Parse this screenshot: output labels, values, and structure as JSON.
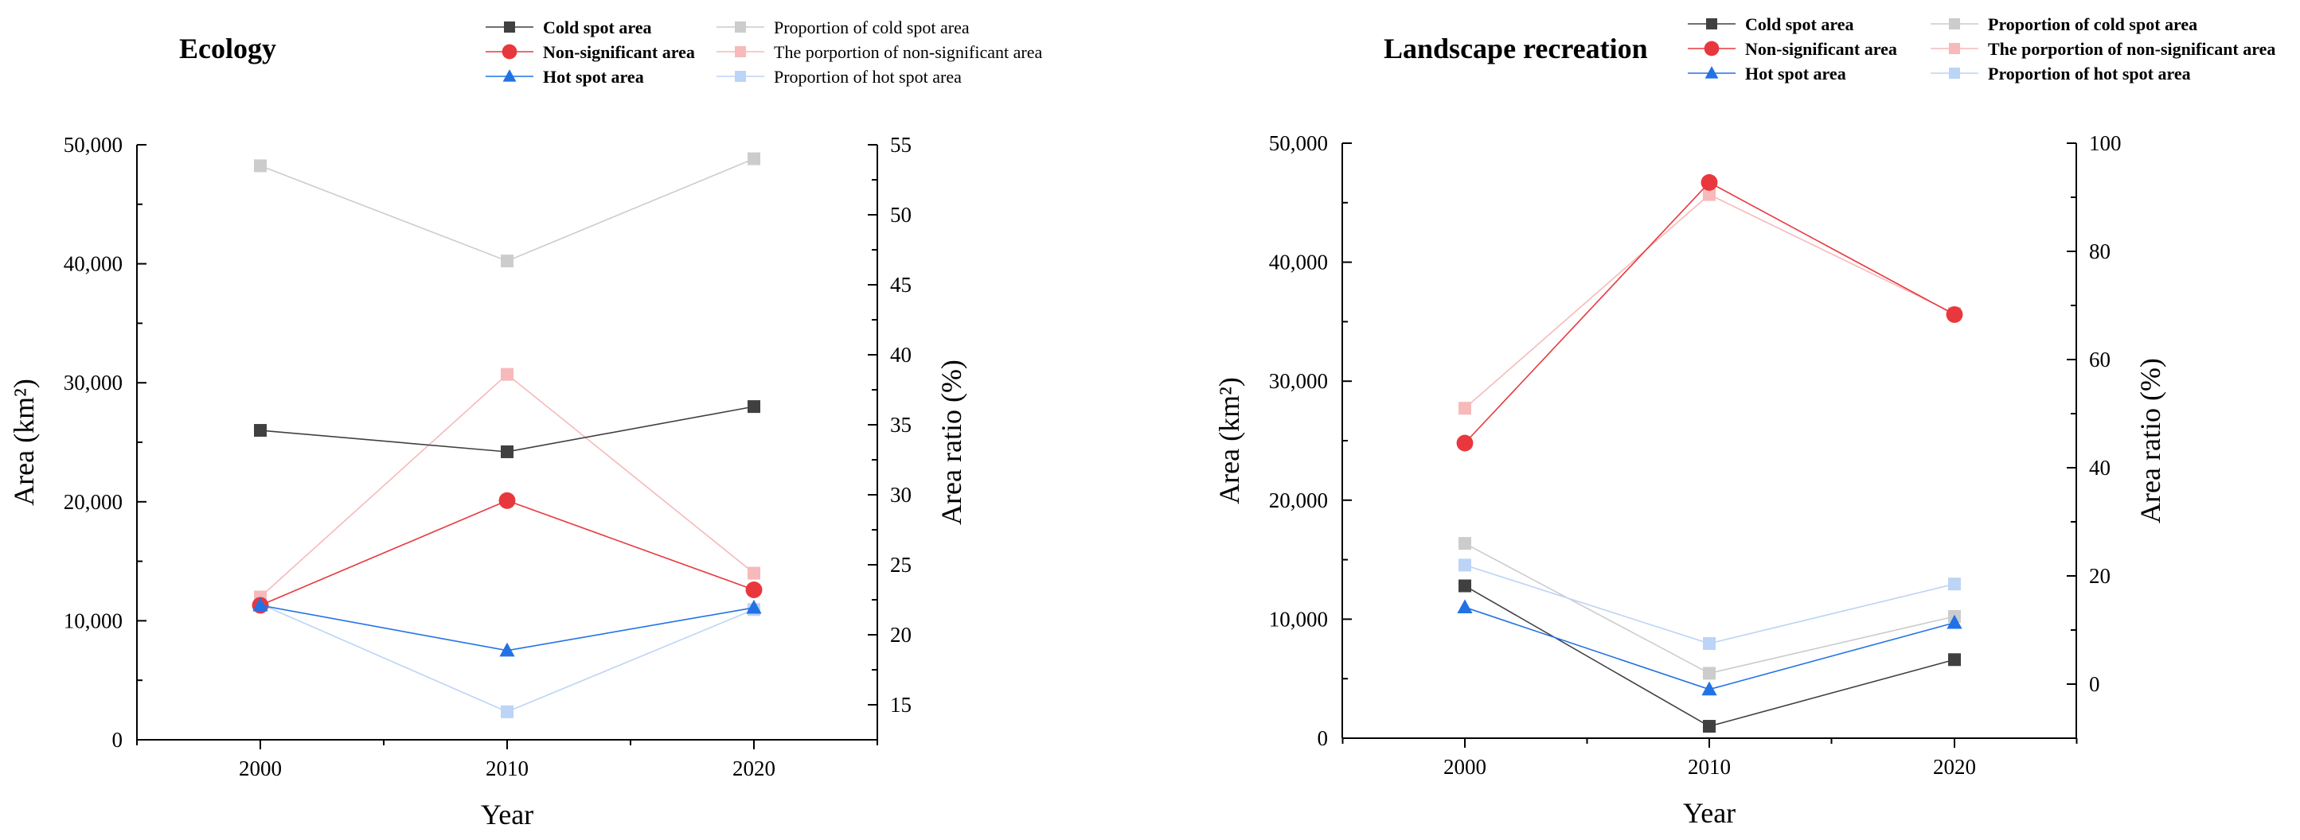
{
  "chart_data": [
    {
      "type": "line",
      "title": "Ecology",
      "xlabel": "Year",
      "ylabel": "Area (km²)",
      "y2label": "Area ratio (%)",
      "categories": [
        "2000",
        "2010",
        "2020"
      ],
      "ylim": [
        0,
        50000
      ],
      "y2lim": [
        12.5,
        55
      ],
      "yticks": [
        0,
        10000,
        20000,
        30000,
        40000,
        50000
      ],
      "yticklabels": [
        "0",
        "10,000",
        "20,000",
        "30,000",
        "40,000",
        "50,000"
      ],
      "y2ticks": [
        15,
        20,
        25,
        30,
        35,
        40,
        45,
        50,
        55
      ],
      "y2ticklabels": [
        "15",
        "20",
        "25",
        "30",
        "35",
        "40",
        "45",
        "50",
        "55"
      ],
      "legend_bold_series": true,
      "legend_bold_proportions": false,
      "series": [
        {
          "name": "Cold spot area",
          "axis": "left",
          "marker": "square",
          "color": "#404040",
          "values": [
            26000,
            24200,
            28000
          ]
        },
        {
          "name": "Non-significant area",
          "axis": "left",
          "marker": "circle",
          "color": "#e8383d",
          "values": [
            11300,
            20100,
            12600
          ]
        },
        {
          "name": "Hot spot area",
          "axis": "left",
          "marker": "triangle",
          "color": "#2272e6",
          "values": [
            11300,
            7500,
            11100
          ]
        },
        {
          "name": "Proportion of cold spot area",
          "axis": "right",
          "marker": "square",
          "color": "#cccccc",
          "values": [
            53.5,
            46.7,
            54.0
          ]
        },
        {
          "name": "The porportion of non-significant area",
          "axis": "right",
          "marker": "square",
          "color": "#f7b9b9",
          "values": [
            22.7,
            38.6,
            24.4
          ]
        },
        {
          "name": "Proportion of hot spot area",
          "axis": "right",
          "marker": "square",
          "color": "#bcd4f5",
          "values": [
            22.2,
            14.5,
            21.8
          ]
        }
      ]
    },
    {
      "type": "line",
      "title": "Landscape recreation",
      "xlabel": "Year",
      "ylabel": "Area (km²)",
      "y2label": "Area ratio (%)",
      "categories": [
        "2000",
        "2010",
        "2020"
      ],
      "ylim": [
        0,
        50000
      ],
      "y2lim": [
        -10,
        100
      ],
      "yticks": [
        0,
        10000,
        20000,
        30000,
        40000,
        50000
      ],
      "yticklabels": [
        "0",
        "10,000",
        "20,000",
        "30,000",
        "40,000",
        "50,000"
      ],
      "y2ticks": [
        0,
        20,
        40,
        60,
        80,
        100
      ],
      "y2ticklabels": [
        "0",
        "20",
        "40",
        "60",
        "80",
        "100"
      ],
      "legend_bold_series": true,
      "legend_bold_proportions": true,
      "series": [
        {
          "name": "Cold spot area",
          "axis": "left",
          "marker": "square",
          "color": "#404040",
          "values": [
            12800,
            1000,
            6600
          ]
        },
        {
          "name": "Non-significant area",
          "axis": "left",
          "marker": "circle",
          "color": "#e8383d",
          "values": [
            24800,
            46700,
            35600
          ]
        },
        {
          "name": "Hot spot area",
          "axis": "left",
          "marker": "triangle",
          "color": "#2272e6",
          "values": [
            11000,
            4100,
            9700
          ]
        },
        {
          "name": "Proportion of cold spot area",
          "axis": "right",
          "marker": "square",
          "color": "#cccccc",
          "values": [
            26.0,
            2.0,
            12.5
          ]
        },
        {
          "name": "The porportion of non-significant area",
          "axis": "right",
          "marker": "square",
          "color": "#f7b9b9",
          "values": [
            51.0,
            90.5,
            68.5
          ]
        },
        {
          "name": "Proportion of hot spot area",
          "axis": "right",
          "marker": "square",
          "color": "#bcd4f5",
          "values": [
            22.0,
            7.5,
            18.5
          ]
        }
      ]
    }
  ]
}
